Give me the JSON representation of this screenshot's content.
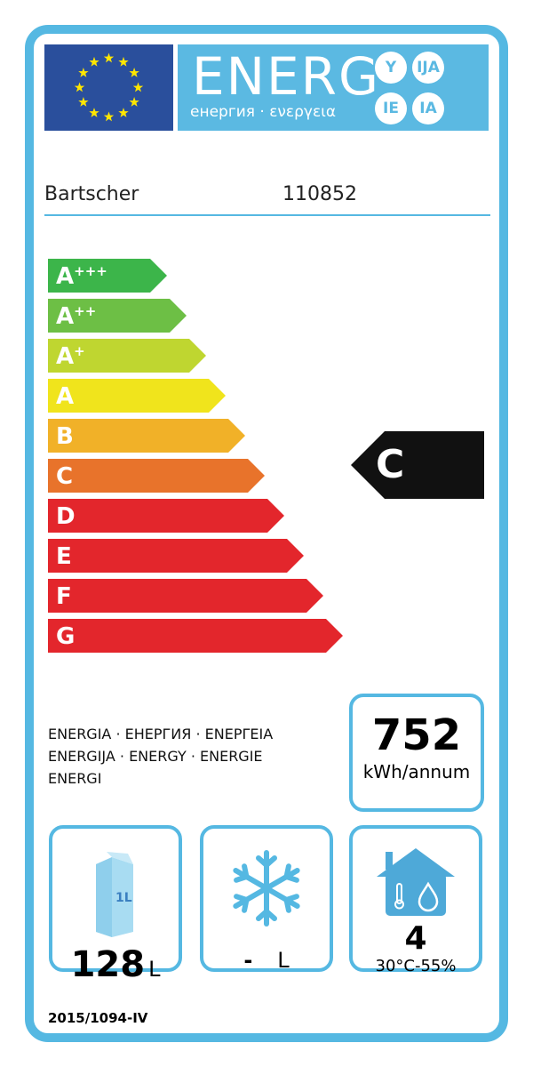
{
  "header": {
    "logo_text": "ENERG",
    "subtitle": "енергия · ενεργεια",
    "suffixes": [
      "Y",
      "IJA",
      "IE",
      "IA"
    ]
  },
  "supplier": {
    "brand": "Bartscher",
    "model": "110852"
  },
  "scale": [
    {
      "label": "A",
      "sup": "+++",
      "color": "#3cb54a"
    },
    {
      "label": "A",
      "sup": "++",
      "color": "#6dbf45"
    },
    {
      "label": "A",
      "sup": "+",
      "color": "#bfd630"
    },
    {
      "label": "A",
      "sup": "",
      "color": "#f0e41c"
    },
    {
      "label": "B",
      "sup": "",
      "color": "#f1b128"
    },
    {
      "label": "C",
      "sup": "",
      "color": "#e8732b"
    },
    {
      "label": "D",
      "sup": "",
      "color": "#e3262c"
    },
    {
      "label": "E",
      "sup": "",
      "color": "#e3262c"
    },
    {
      "label": "F",
      "sup": "",
      "color": "#e3262c"
    },
    {
      "label": "G",
      "sup": "",
      "color": "#e3262c"
    }
  ],
  "rating": "C",
  "energy_words": [
    "ENERGIA · ЕНЕРГИЯ · ΕΝΕΡΓΕΙΑ",
    "ENERGIJA · ENERGY · ENERGIE",
    "ENERGI"
  ],
  "consumption": {
    "value": "752",
    "unit": "kWh/annum"
  },
  "fresh_volume": {
    "value": "128",
    "unit": "L",
    "icon_text": "1L"
  },
  "frozen_volume": {
    "value": "-",
    "unit": "L"
  },
  "climate": {
    "class": "4",
    "conditions": "30°C-55%"
  },
  "regulation": "2015/1094-IV",
  "colors": {
    "frame": "#55b8e2",
    "flag": "#2a4f9c",
    "stars": "#ffe600"
  }
}
